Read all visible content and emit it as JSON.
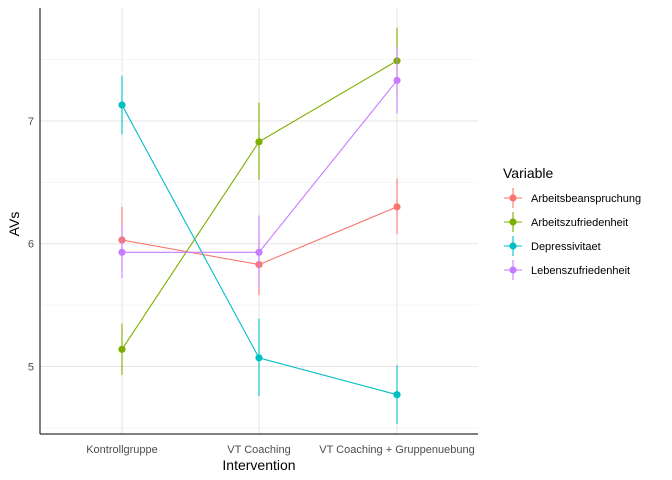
{
  "chart_data": {
    "type": "line",
    "title": "",
    "xlabel": "Intervention",
    "ylabel": "AVs",
    "categories": [
      "Kontrollgruppe",
      "VT Coaching",
      "VT Coaching + Gruppenuebung"
    ],
    "ylim": [
      4.45,
      7.92
    ],
    "y_major_ticks": [
      5,
      6,
      7
    ],
    "y_minor_ticks": [
      4.5,
      5.5,
      6.5,
      7.5
    ],
    "grid": true,
    "legend": {
      "title": "Variable",
      "position": "right"
    },
    "series": [
      {
        "name": "Arbeitsbeanspruchung",
        "color": "#F8766D",
        "values": [
          6.03,
          5.83,
          6.3
        ],
        "error_low": [
          5.79,
          5.58,
          6.08
        ],
        "error_high": [
          6.3,
          6.07,
          6.53
        ]
      },
      {
        "name": "Arbeitszufriedenheit",
        "color": "#7CAE00",
        "values": [
          5.14,
          6.83,
          7.49
        ],
        "error_low": [
          4.93,
          6.52,
          7.21
        ],
        "error_high": [
          5.35,
          7.15,
          7.76
        ]
      },
      {
        "name": "Depressivitaet",
        "color": "#00BFC4",
        "values": [
          7.13,
          5.07,
          4.77
        ],
        "error_low": [
          6.89,
          4.76,
          4.53
        ],
        "error_high": [
          7.37,
          5.39,
          5.01
        ]
      },
      {
        "name": "Lebenszufriedenheit",
        "color": "#C77CFF",
        "values": [
          5.93,
          5.93,
          7.33
        ],
        "error_low": [
          5.72,
          5.64,
          7.06
        ],
        "error_high": [
          6.15,
          6.23,
          7.6
        ]
      }
    ]
  }
}
